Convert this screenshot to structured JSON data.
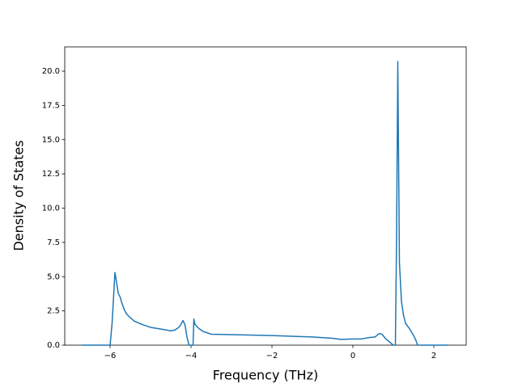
{
  "chart_data": {
    "type": "line",
    "xlabel": "Frequency (THz)",
    "ylabel": "Density of States",
    "x": [
      -6.7,
      -6.0,
      -5.95,
      -5.88,
      -5.84,
      -5.8,
      -5.75,
      -5.7,
      -5.65,
      -5.6,
      -5.5,
      -5.4,
      -5.2,
      -5.0,
      -4.8,
      -4.6,
      -4.5,
      -4.4,
      -4.3,
      -4.25,
      -4.2,
      -4.15,
      -4.1,
      -4.05,
      -3.95,
      -3.93,
      -3.9,
      -3.8,
      -3.7,
      -3.6,
      -3.5,
      -3.0,
      -2.0,
      -1.0,
      -0.5,
      -0.3,
      0.0,
      0.2,
      0.4,
      0.55,
      0.65,
      0.72,
      0.8,
      0.9,
      1.0,
      1.05,
      1.08,
      1.11,
      1.15,
      1.2,
      1.25,
      1.3,
      1.4,
      1.5,
      1.55,
      1.6,
      2.35
    ],
    "series": [
      {
        "color": "#1f77b4",
        "values": [
          0,
          0,
          1.6,
          5.3,
          4.6,
          3.8,
          3.5,
          3.0,
          2.6,
          2.3,
          2.0,
          1.75,
          1.5,
          1.3,
          1.2,
          1.1,
          1.05,
          1.1,
          1.3,
          1.5,
          1.8,
          1.5,
          0.6,
          0,
          0,
          1.9,
          1.5,
          1.2,
          1.0,
          0.9,
          0.8,
          0.77,
          0.7,
          0.6,
          0.5,
          0.42,
          0.45,
          0.45,
          0.55,
          0.6,
          0.85,
          0.8,
          0.5,
          0.25,
          0,
          0,
          8,
          20.7,
          6,
          3.2,
          2.2,
          1.6,
          1.2,
          0.7,
          0.4,
          0,
          0
        ]
      }
    ],
    "xlim": [
      -7.12,
      2.8
    ],
    "ylim": [
      0,
      21.77
    ],
    "xticks": [
      {
        "value": -6,
        "label": "−6"
      },
      {
        "value": -4,
        "label": "−4"
      },
      {
        "value": -2,
        "label": "−2"
      },
      0,
      2
    ],
    "yticks": [
      {
        "value": 0,
        "label": "0.0"
      },
      {
        "value": 2.5,
        "label": "2.5"
      },
      {
        "value": 5,
        "label": "5.0"
      },
      {
        "value": 7.5,
        "label": "7.5"
      },
      {
        "value": 10,
        "label": "10.0"
      },
      {
        "value": 12.5,
        "label": "12.5"
      },
      {
        "value": 15,
        "label": "15.0"
      },
      {
        "value": 17.5,
        "label": "17.5"
      },
      {
        "value": 20,
        "label": "20.0"
      }
    ]
  }
}
